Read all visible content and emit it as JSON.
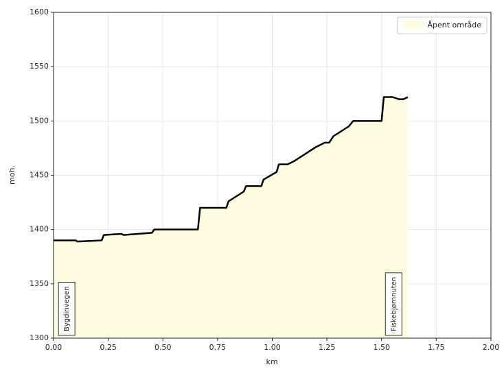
{
  "chart_data": {
    "type": "area",
    "x_label": "km",
    "y_label": "moh.",
    "x": [
      0,
      0.1,
      0.11,
      0.22,
      0.23,
      0.31,
      0.32,
      0.45,
      0.46,
      0.66,
      0.67,
      0.79,
      0.8,
      0.87,
      0.88,
      0.95,
      0.96,
      1.02,
      1.03,
      1.07,
      1.1,
      1.2,
      1.24,
      1.26,
      1.28,
      1.35,
      1.37,
      1.5,
      1.51,
      1.55,
      1.58,
      1.6,
      1.62
    ],
    "series": [
      {
        "name": "Åpent område",
        "color": "#fdfde1",
        "line_color": "#000000",
        "values": [
          1390,
          1390,
          1389,
          1390,
          1395,
          1396,
          1395,
          1397,
          1400,
          1400,
          1420,
          1420,
          1426,
          1435,
          1440,
          1440,
          1446,
          1453,
          1460,
          1460,
          1463,
          1476,
          1480,
          1480,
          1486,
          1495,
          1500,
          1500,
          1522,
          1522,
          1520,
          1520,
          1522
        ]
      }
    ],
    "xlim": [
      0,
      2
    ],
    "xticks": [
      {
        "value": 0,
        "label": "0.00"
      },
      {
        "value": 0.25,
        "label": "0.25"
      },
      {
        "value": 0.5,
        "label": "0.50"
      },
      {
        "value": 0.75,
        "label": "0.75"
      },
      {
        "value": 1,
        "label": "1.00"
      },
      {
        "value": 1.25,
        "label": "1.25"
      },
      {
        "value": 1.5,
        "label": "1.50"
      },
      {
        "value": 1.75,
        "label": "1.75"
      },
      {
        "value": 2,
        "label": "2.00"
      }
    ],
    "ylim": [
      1300,
      1600
    ],
    "yticks": [
      1300,
      1350,
      1400,
      1450,
      1500,
      1550,
      1600
    ],
    "grid": true,
    "legend": "upper right",
    "annotations": [
      {
        "text": "Bygdinvegen",
        "x": 0.06
      },
      {
        "text": "Fiskebjørnnuten",
        "x": 1.555
      }
    ]
  }
}
